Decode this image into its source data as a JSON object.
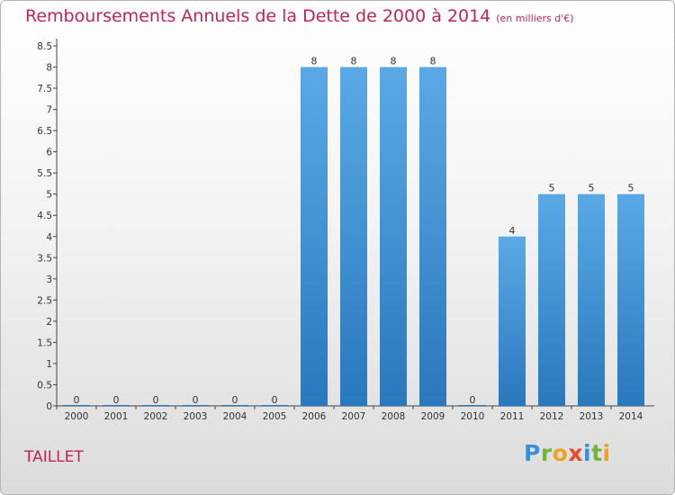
{
  "title": "Remboursements Annuels de la Dette de 2000 à 2014",
  "unit": "(en milliers d'€)",
  "commune": "TAILLET",
  "logo": {
    "text": "Proxiti"
  },
  "colors": {
    "title": "#c0245a",
    "bar_light": "#5aa9e6",
    "bar_dark": "#2a78bd"
  },
  "chart_data": {
    "type": "bar",
    "title": "Remboursements Annuels de la Dette de 2000 à 2014",
    "unit": "(en milliers d'€)",
    "categories": [
      "2000",
      "2001",
      "2002",
      "2003",
      "2004",
      "2005",
      "2006",
      "2007",
      "2008",
      "2009",
      "2010",
      "2011",
      "2012",
      "2013",
      "2014"
    ],
    "values": [
      0,
      0,
      0,
      0,
      0,
      0,
      8,
      8,
      8,
      8,
      0,
      4,
      5,
      5,
      5
    ],
    "data_labels": [
      "0",
      "0",
      "0",
      "0",
      "0",
      "0",
      "8",
      "8",
      "8",
      "8",
      "0",
      "4",
      "5",
      "5",
      "5"
    ],
    "y_ticks": [
      "0",
      "0.5",
      "1",
      "1.5",
      "2",
      "2.5",
      "3",
      "3.5",
      "4",
      "4.5",
      "5",
      "5.5",
      "6",
      "6.5",
      "7",
      "7.5",
      "8",
      "8.5"
    ],
    "ylim": [
      0,
      8.5
    ],
    "grid": false,
    "legend": "none"
  }
}
